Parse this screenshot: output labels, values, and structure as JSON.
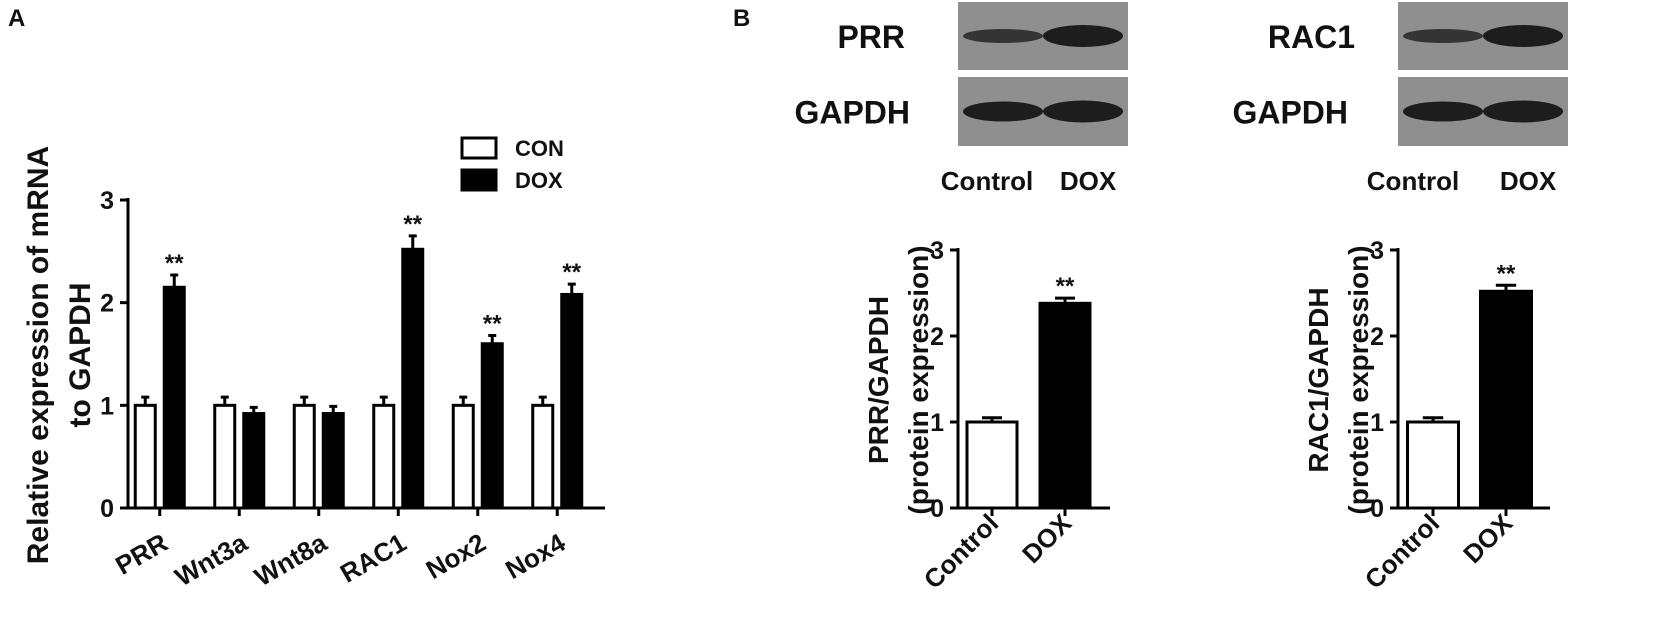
{
  "panels": [
    "A",
    "B"
  ],
  "blots": [
    {
      "rows": [
        "PRR",
        "GAPDH"
      ],
      "lanes": [
        "Control",
        "DOX"
      ]
    },
    {
      "rows": [
        "RAC1",
        "GAPDH"
      ],
      "lanes": [
        "Control",
        "DOX"
      ]
    }
  ],
  "chart_data": [
    {
      "type": "bar",
      "ylabel": [
        "Relative expression of mRNA",
        "to GAPDH"
      ],
      "categories": [
        "PRR",
        "Wnt3a",
        "Wnt8a",
        "RAC1",
        "Nox2",
        "Nox4"
      ],
      "series": [
        {
          "name": "CON",
          "color": "#ffffff",
          "values": [
            1,
            1,
            1,
            1,
            1,
            1
          ],
          "errors": [
            0.08,
            0.08,
            0.08,
            0.08,
            0.08,
            0.08
          ],
          "significance": [
            null,
            null,
            null,
            null,
            null,
            null
          ]
        },
        {
          "name": "DOX",
          "color": "#000000",
          "values": [
            2.15,
            0.92,
            0.92,
            2.52,
            1.6,
            2.08
          ],
          "errors": [
            0.12,
            0.06,
            0.07,
            0.13,
            0.08,
            0.1
          ],
          "significance": [
            "**",
            null,
            null,
            "**",
            "**",
            "**"
          ]
        }
      ],
      "ylim": [
        0,
        3
      ],
      "yticks": [
        0,
        1,
        2,
        3
      ],
      "legend": "top-right"
    },
    {
      "type": "bar",
      "ylabel": [
        "PRR/GAPDH",
        "(protein expression)"
      ],
      "categories": [
        "Control",
        "DOX"
      ],
      "values": [
        1.0,
        2.38
      ],
      "errors": [
        0.05,
        0.06
      ],
      "colors": [
        "#ffffff",
        "#000000"
      ],
      "significance": [
        null,
        "**"
      ],
      "ylim": [
        0,
        3
      ],
      "yticks": [
        0,
        1,
        2,
        3
      ]
    },
    {
      "type": "bar",
      "ylabel": [
        "RAC1/GAPDH",
        "(protein expression)"
      ],
      "categories": [
        "Control",
        "DOX"
      ],
      "values": [
        1.0,
        2.52
      ],
      "errors": [
        0.05,
        0.07
      ],
      "colors": [
        "#ffffff",
        "#000000"
      ],
      "significance": [
        null,
        "**"
      ],
      "ylim": [
        0,
        3
      ],
      "yticks": [
        0,
        1,
        2,
        3
      ]
    }
  ]
}
